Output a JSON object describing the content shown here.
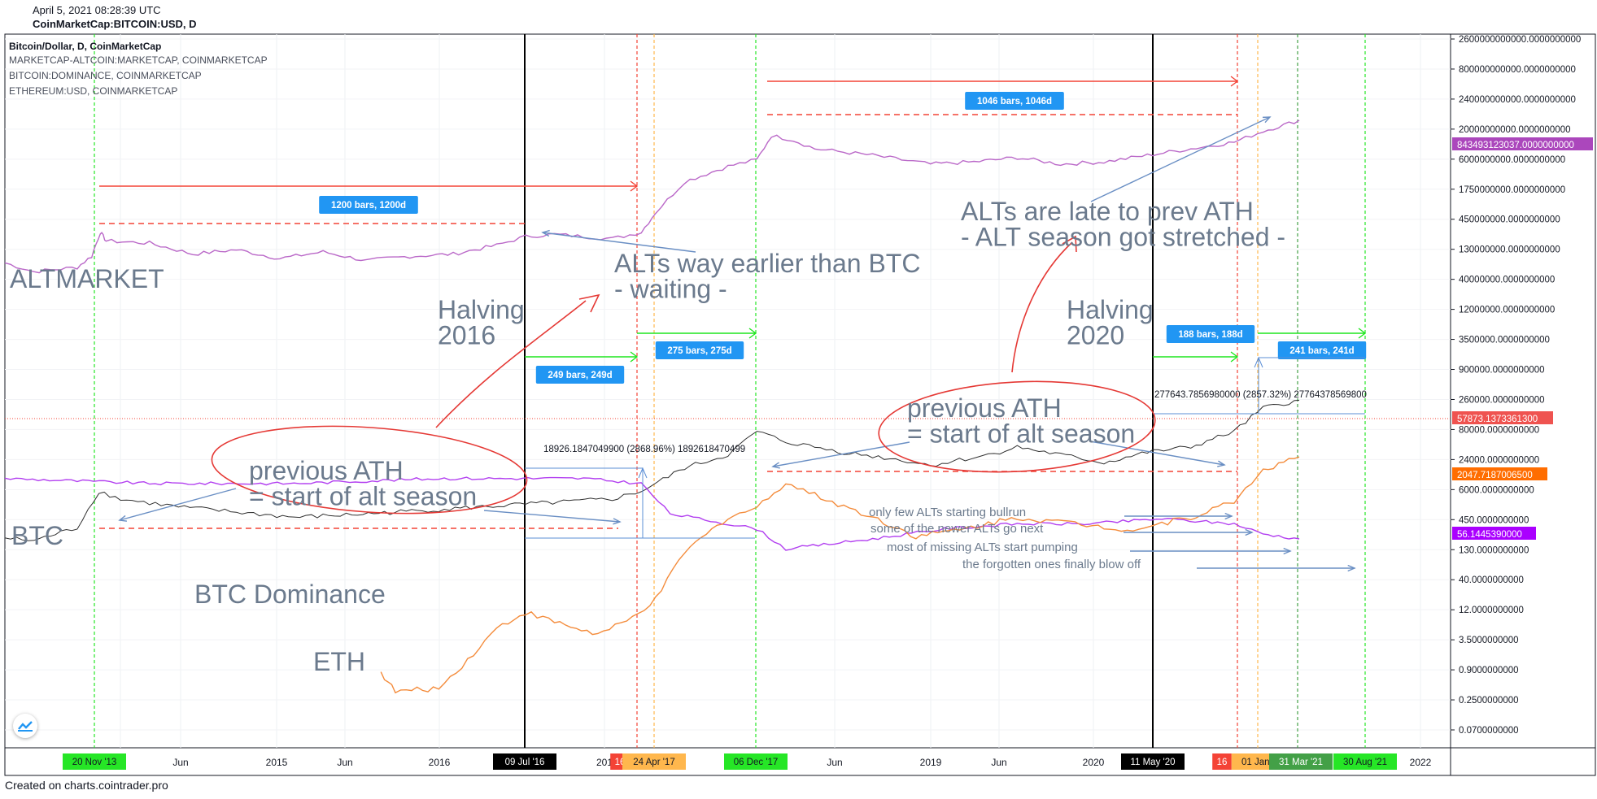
{
  "header": {
    "date": "April 5, 2021 08:28:39 UTC",
    "symbol": "CoinMarketCap:BITCOIN:USD, D"
  },
  "legend": [
    "Bitcoin/Dollar, D, CoinMarketCap",
    "MARKETCAP-ALTCOIN:MARKETCAP, COINMARKETCAP",
    "BITCOIN:DOMINANCE, COINMARKETCAP",
    "ETHEREUM:USD, COINMARKETCAP"
  ],
  "footer": "Created on charts.cointrader.pro",
  "colors": {
    "altmarket": "#ba68c8",
    "btc": "#2e2e2e",
    "dominance": "#b23ff0",
    "eth": "#f48c3c",
    "annotation": "#6b7a8d",
    "ink": "#e53935",
    "green": "#26e626",
    "orange": "#ffb74d",
    "red": "#f44336",
    "label_blue": "#2196f3"
  },
  "chart_data": {
    "type": "line",
    "yscale": "log",
    "x_ticks": [
      "4",
      "Jun",
      "2015",
      "Jun",
      "2016",
      "201",
      "Jun",
      "2019",
      "Jun",
      "2020",
      "2022"
    ],
    "y_ticks": [
      "2600000000000.0000000000",
      "800000000000.0000000000",
      "240000000000.0000000000",
      "20000000000.0000000000",
      "6000000000.0000000000",
      "1750000000.0000000000",
      "450000000.0000000000",
      "130000000.0000000000",
      "40000000.0000000000",
      "12000000.0000000000",
      "3500000.0000000000",
      "900000.0000000000",
      "260000.0000000000",
      "80000.0000000000",
      "24000.0000000000",
      "6000.0000000000",
      "450.0000000000",
      "130.0000000000",
      "40.0000000000",
      "12.0000000000",
      "3.5000000000",
      "0.9000000000",
      "0.2500000000",
      "0.0700000000"
    ],
    "price_tags": [
      {
        "text": "843493123037.0000000000",
        "color": "#ab47bc"
      },
      {
        "text": "57873.1373361300",
        "color": "#ef5350"
      },
      {
        "text": "2047.7187006500",
        "color": "#ff6d00"
      },
      {
        "text": "56.1445390000",
        "color": "#aa00ff"
      }
    ],
    "date_labels": [
      {
        "text": "20 Nov '13",
        "color": "#26e626",
        "tc": "#131722"
      },
      {
        "text": "09 Jul '16",
        "color": "#000000",
        "tc": "#ffffff"
      },
      {
        "text": "16",
        "color": "#f44336",
        "tc": "#ffffff"
      },
      {
        "text": "24 Apr '17",
        "color": "#ffb74d",
        "tc": "#131722"
      },
      {
        "text": "06 Dec '17",
        "color": "#26e626",
        "tc": "#131722"
      },
      {
        "text": "11 May '20",
        "color": "#000000",
        "tc": "#ffffff"
      },
      {
        "text": "16",
        "color": "#f44336",
        "tc": "#ffffff"
      },
      {
        "text": "01 Jan '",
        "color": "#ffb74d",
        "tc": "#131722"
      },
      {
        "text": "31 Mar '21",
        "color": "#43a047",
        "tc": "#ffffff"
      },
      {
        "text": "30 Aug '21",
        "color": "#26e626",
        "tc": "#131722"
      }
    ],
    "bar_labels": [
      "1200 bars, 1200d",
      "1046 bars, 1046d",
      "249 bars, 249d",
      "275 bars, 275d",
      "188 bars, 188d",
      "241 bars, 241d"
    ],
    "measure_labels": [
      "18926.1847049900 (2868.96%) 1892618470499",
      "277643.7856980000 (2857.32%) 27764378569800"
    ],
    "series_labels": [
      "ALTMARKET",
      "BTC",
      "BTC Dominance",
      "ETH"
    ],
    "annotations": {
      "halving2016": [
        "Halving",
        "2016"
      ],
      "halving2020": [
        "Halving",
        "2020"
      ],
      "alts_earlier": [
        "ALTs way earlier than BTC",
        " - waiting -"
      ],
      "alts_late": [
        "ALTs are late to prev ATH",
        "- ALT season got stretched -"
      ],
      "ath_left": [
        "previous ATH",
        "= start of alt season"
      ],
      "ath_right": [
        "previous ATH",
        "= start of alt season"
      ],
      "rotation": [
        "only few ALTs starting bullrun",
        "some of the newer ALTs go next",
        "most of missing ALTs start pumping",
        "the forgotten ones finally blow off"
      ]
    },
    "series": [
      {
        "name": "ALTMARKET",
        "points": [
          [
            0,
            0.18
          ],
          [
            0.02,
            0.14
          ],
          [
            0.05,
            0.16
          ],
          [
            0.06,
            0.21
          ],
          [
            0.066,
            0.32
          ],
          [
            0.07,
            0.28
          ],
          [
            0.1,
            0.27
          ],
          [
            0.13,
            0.22
          ],
          [
            0.16,
            0.24
          ],
          [
            0.19,
            0.2
          ],
          [
            0.22,
            0.23
          ],
          [
            0.25,
            0.19
          ],
          [
            0.28,
            0.21
          ],
          [
            0.31,
            0.22
          ],
          [
            0.34,
            0.26
          ],
          [
            0.36,
            0.3
          ],
          [
            0.38,
            0.31
          ],
          [
            0.4,
            0.3
          ],
          [
            0.42,
            0.29
          ],
          [
            0.44,
            0.32
          ],
          [
            0.45,
            0.41
          ],
          [
            0.47,
            0.55
          ],
          [
            0.5,
            0.62
          ],
          [
            0.52,
            0.65
          ],
          [
            0.53,
            0.76
          ],
          [
            0.545,
            0.74
          ],
          [
            0.56,
            0.7
          ],
          [
            0.6,
            0.67
          ],
          [
            0.64,
            0.63
          ],
          [
            0.67,
            0.64
          ],
          [
            0.7,
            0.66
          ],
          [
            0.73,
            0.63
          ],
          [
            0.76,
            0.64
          ],
          [
            0.79,
            0.67
          ],
          [
            0.82,
            0.7
          ],
          [
            0.85,
            0.73
          ],
          [
            0.87,
            0.78
          ],
          [
            0.895,
            0.83
          ]
        ]
      },
      {
        "name": "BTC",
        "points": [
          [
            0,
            0.25
          ],
          [
            0.02,
            0.24
          ],
          [
            0.05,
            0.29
          ],
          [
            0.065,
            0.43
          ],
          [
            0.08,
            0.4
          ],
          [
            0.12,
            0.37
          ],
          [
            0.16,
            0.35
          ],
          [
            0.2,
            0.33
          ],
          [
            0.24,
            0.34
          ],
          [
            0.3,
            0.36
          ],
          [
            0.36,
            0.38
          ],
          [
            0.42,
            0.4
          ],
          [
            0.44,
            0.43
          ],
          [
            0.47,
            0.52
          ],
          [
            0.5,
            0.57
          ],
          [
            0.52,
            0.66
          ],
          [
            0.54,
            0.62
          ],
          [
            0.58,
            0.58
          ],
          [
            0.62,
            0.55
          ],
          [
            0.64,
            0.53
          ],
          [
            0.68,
            0.57
          ],
          [
            0.7,
            0.6
          ],
          [
            0.73,
            0.57
          ],
          [
            0.76,
            0.54
          ],
          [
            0.79,
            0.58
          ],
          [
            0.82,
            0.6
          ],
          [
            0.85,
            0.66
          ],
          [
            0.87,
            0.75
          ],
          [
            0.895,
            0.78
          ]
        ]
      },
      {
        "name": "BTC Dominance",
        "points": [
          [
            0,
            0.57
          ],
          [
            0.1,
            0.56
          ],
          [
            0.2,
            0.56
          ],
          [
            0.3,
            0.57
          ],
          [
            0.4,
            0.57
          ],
          [
            0.44,
            0.56
          ],
          [
            0.46,
            0.5
          ],
          [
            0.5,
            0.48
          ],
          [
            0.52,
            0.47
          ],
          [
            0.54,
            0.43
          ],
          [
            0.6,
            0.45
          ],
          [
            0.65,
            0.47
          ],
          [
            0.7,
            0.48
          ],
          [
            0.75,
            0.48
          ],
          [
            0.8,
            0.49
          ],
          [
            0.85,
            0.48
          ],
          [
            0.87,
            0.46
          ],
          [
            0.895,
            0.45
          ]
        ]
      },
      {
        "name": "ETH",
        "points": [
          [
            0.26,
            0.14
          ],
          [
            0.27,
            0.08
          ],
          [
            0.3,
            0.09
          ],
          [
            0.32,
            0.18
          ],
          [
            0.34,
            0.28
          ],
          [
            0.36,
            0.33
          ],
          [
            0.38,
            0.3
          ],
          [
            0.41,
            0.26
          ],
          [
            0.43,
            0.3
          ],
          [
            0.45,
            0.37
          ],
          [
            0.47,
            0.52
          ],
          [
            0.5,
            0.63
          ],
          [
            0.52,
            0.66
          ],
          [
            0.54,
            0.74
          ],
          [
            0.56,
            0.7
          ],
          [
            0.6,
            0.63
          ],
          [
            0.63,
            0.57
          ],
          [
            0.66,
            0.59
          ],
          [
            0.7,
            0.63
          ],
          [
            0.74,
            0.61
          ],
          [
            0.78,
            0.59
          ],
          [
            0.82,
            0.63
          ],
          [
            0.85,
            0.68
          ],
          [
            0.87,
            0.78
          ],
          [
            0.895,
            0.82
          ]
        ]
      }
    ]
  }
}
